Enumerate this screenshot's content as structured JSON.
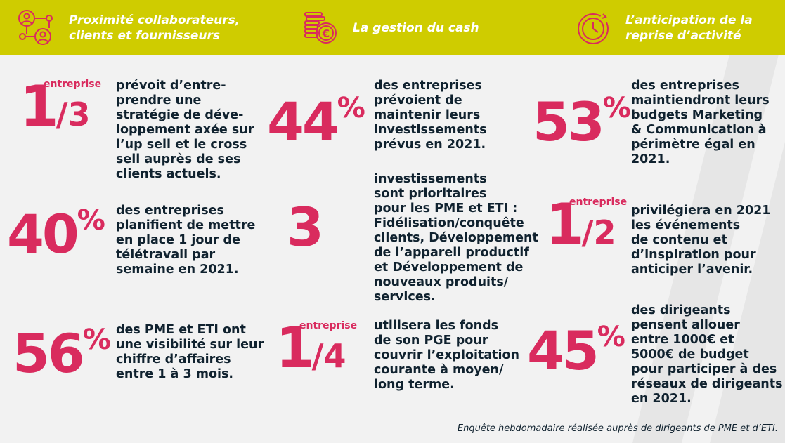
{
  "colors": {
    "header": "#cfcc00",
    "accent": "#d92b5e",
    "text": "#10222f",
    "background": "#f2f2f2"
  },
  "header": [
    {
      "icon": "network-people-icon",
      "title": "Proximité collaborateurs,\nclients et fournisseurs"
    },
    {
      "icon": "euro-coins-icon",
      "title": "La gestion du cash"
    },
    {
      "icon": "clock-anticipation-icon",
      "title": "L’anticipation de la\nreprise d’activité"
    }
  ],
  "stats": {
    "c1r1": {
      "num": "1",
      "den": "/3",
      "label": "entreprise",
      "text": "prévoit d’entre-\nprendre une\nstratégie de déve-\nloppement axée sur\nl’up sell et le cross\nsell auprès de ses\nclients actuels."
    },
    "c1r2": {
      "value": "40",
      "unit": "%",
      "text": "des entreprises\nplanifient de mettre\nen place 1 jour de\ntélétravail par\nsemaine en 2021."
    },
    "c1r3": {
      "value": "56",
      "unit": "%",
      "text": "des PME et ETI ont\nune visibilité sur leur\nchiffre d’affaires\nentre 1 à 3 mois."
    },
    "c2r1": {
      "value": "44",
      "unit": "%",
      "text": "des entreprises\nprévoient de\nmaintenir leurs\ninvestissements\nprévus en 2021."
    },
    "c2r2": {
      "value": "3",
      "text": "investissements\nsont prioritaires\npour les PME et ETI :\nFidélisation/conquête\nclients, Développement\nde l’appareil productif\net Développement de\nnouveaux produits/\nservices."
    },
    "c2r3": {
      "num": "1",
      "den": "/4",
      "label": "entreprise",
      "text": "utilisera les fonds\nde son PGE pour\ncouvrir l’exploitation\ncourante à moyen/\nlong terme."
    },
    "c3r1": {
      "value": "53",
      "unit": "%",
      "text": "des entreprises\nmaintiendront leurs\nbudgets Marketing\n& Communication à\npérimètre égal en\n2021."
    },
    "c3r2": {
      "num": "1",
      "den": "/2",
      "label": "entreprise",
      "text": "privilégiera en 2021\nles événements\nde contenu et\nd’inspiration pour\nanticiper l’avenir."
    },
    "c3r3": {
      "value": "45",
      "unit": "%",
      "text": "des dirigeants\npensent allouer\nentre 1000€ et\n5000€ de budget\npour participer à des\nréseaux de dirigeants\nen 2021."
    }
  },
  "footer": "Enquête hebdomadaire réalisée auprès de dirigeants de PME et d’ETI."
}
